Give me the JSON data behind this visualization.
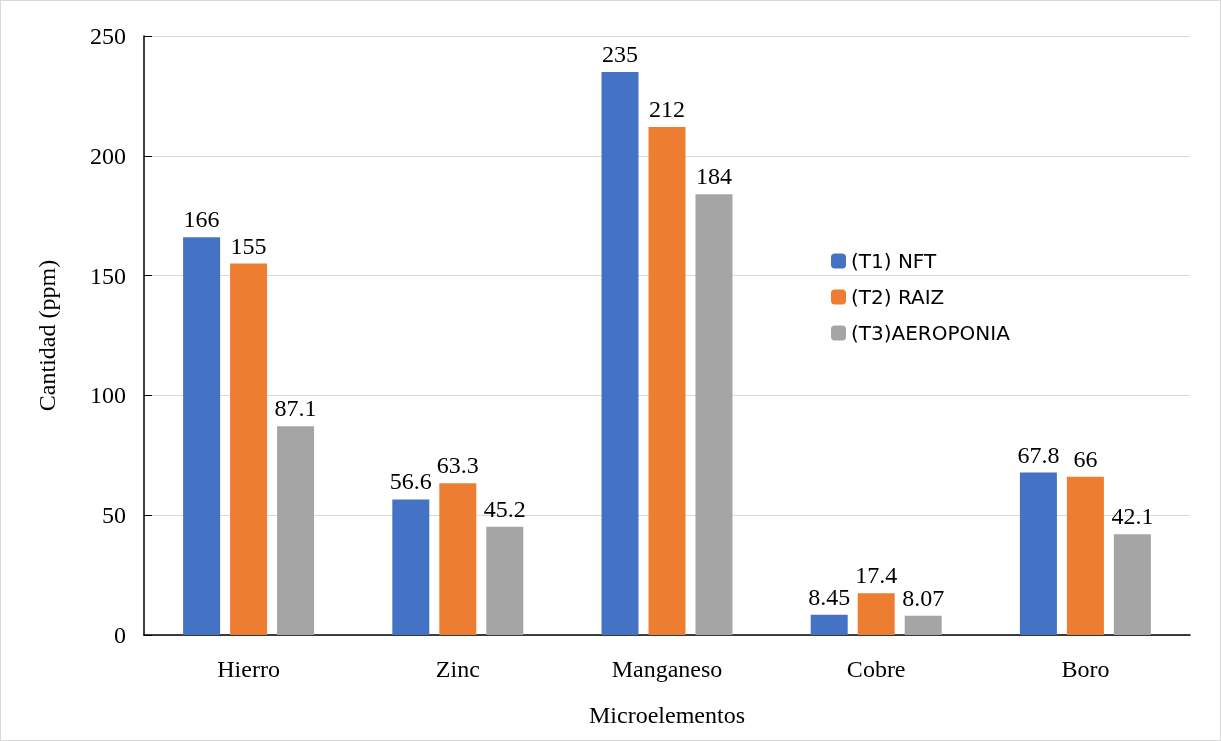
{
  "chart_data": {
    "type": "bar",
    "xlabel": "Microelementos",
    "ylabel": "Cantidad (ppm)",
    "categories": [
      "Hierro",
      "Zinc",
      "Manganeso",
      "Cobre",
      "Boro"
    ],
    "series": [
      {
        "name": "(T1) NFT",
        "color": "#4472c4",
        "values": [
          166,
          56.6,
          235,
          8.45,
          67.8
        ]
      },
      {
        "name": "(T2) RAIZ",
        "color": "#ed7d31",
        "values": [
          155,
          63.3,
          212,
          17.4,
          66
        ]
      },
      {
        "name": "(T3)AEROPONIA",
        "color": "#a5a5a5",
        "values": [
          87.1,
          45.2,
          184,
          8.07,
          42.1
        ]
      }
    ],
    "ylim": [
      0,
      250
    ],
    "yticks": [
      0,
      50,
      100,
      150,
      200,
      250
    ],
    "grid": "y",
    "legend": "right",
    "data_labels": true
  }
}
